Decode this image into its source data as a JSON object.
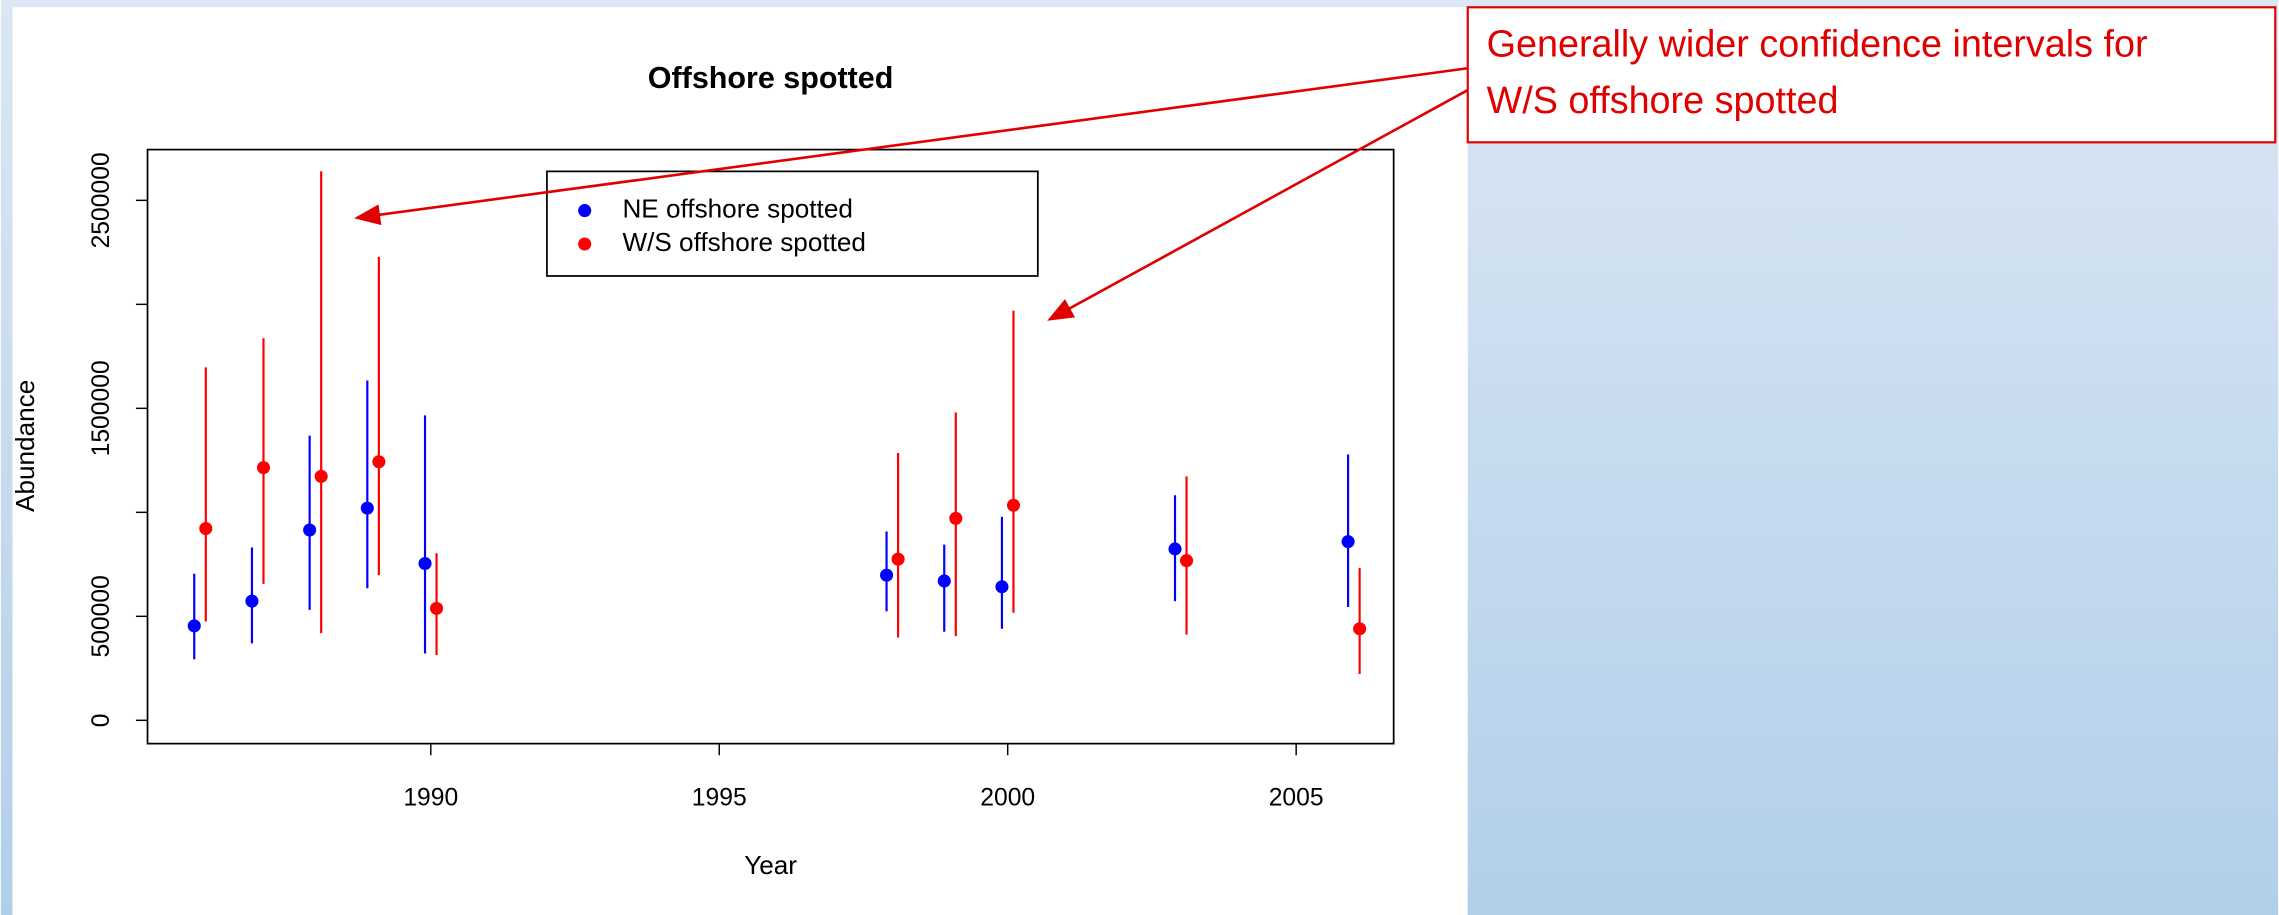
{
  "chart_data": {
    "type": "errorbar",
    "title": "Offshore spotted",
    "xlabel": "Year",
    "ylabel": "Abundance",
    "xlim": [
      1985.09,
      2006.69
    ],
    "ylim": [
      -112000,
      2744000
    ],
    "xticks": [
      1990,
      1995,
      2000,
      2005
    ],
    "yticks": [
      0,
      500000,
      {
        "value": 1000000,
        "label": null
      },
      1500000,
      {
        "value": 2000000,
        "label": null
      },
      2500000
    ],
    "legend": "top",
    "series": [
      {
        "name": "NE offshore spotted",
        "color": "#0000ff",
        "x": [
          1985.9,
          1986.9,
          1987.9,
          1988.9,
          1989.9,
          1997.9,
          1998.9,
          1999.9,
          2002.9,
          2005.9
        ],
        "values": [
          454000,
          573000,
          915000,
          1020000,
          754000,
          698000,
          670000,
          642000,
          824000,
          859000
        ],
        "low": [
          293000,
          370000,
          531000,
          635000,
          321000,
          524000,
          426000,
          440000,
          573000,
          545000
        ],
        "high": [
          705000,
          831000,
          1369000,
          1634000,
          1466000,
          908000,
          845000,
          978000,
          1082000,
          1278000
        ]
      },
      {
        "name": "W/S offshore spotted",
        "color": "#ff0000",
        "x": [
          1986.1,
          1987.1,
          1988.1,
          1989.1,
          1990.1,
          1998.1,
          1999.1,
          2000.1,
          2003.1,
          2006.1
        ],
        "values": [
          922000,
          1215000,
          1173000,
          1243000,
          538000,
          775000,
          971000,
          1034000,
          768000,
          440000
        ],
        "low": [
          475000,
          656000,
          419000,
          698000,
          314000,
          398000,
          405000,
          517000,
          412000,
          223000
        ],
        "high": [
          1697000,
          1837000,
          2640000,
          2228000,
          803000,
          1285000,
          1480000,
          1969000,
          1173000,
          733000
        ]
      }
    ],
    "annotation": [
      "Generally wider confidence intervals for",
      "W/S offshore spotted"
    ]
  }
}
